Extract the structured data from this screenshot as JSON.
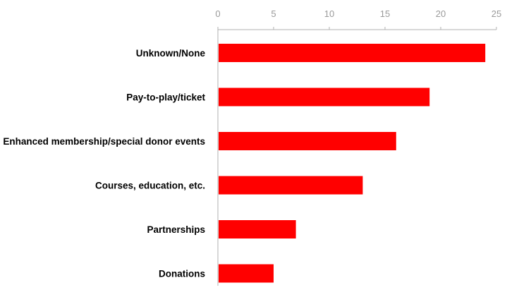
{
  "chart_data": {
    "type": "bar",
    "orientation": "horizontal",
    "categories": [
      "Unknown/None",
      "Pay-to-play/ticket",
      "Enhanced membership/special donor events",
      "Courses, education, etc.",
      "Partnerships",
      "Donations"
    ],
    "values": [
      24,
      19,
      16,
      13,
      7,
      5
    ],
    "xlim": [
      0,
      25
    ],
    "xticks": [
      "0",
      "5",
      "10",
      "15",
      "20",
      "25"
    ],
    "axis_position": "top",
    "grid": false,
    "bar_color": "#ff0000",
    "axis_color": "#b0b0b0",
    "tick_label_color": "#9a9a9a"
  }
}
